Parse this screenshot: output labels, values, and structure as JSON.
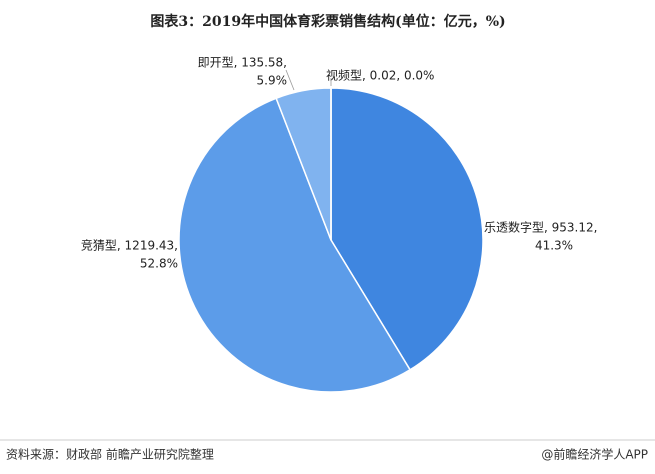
{
  "chart_data": {
    "type": "pie",
    "title": "图表3：2019年中国体育彩票销售结构(单位：亿元，%)",
    "values": [
      953.12,
      1219.43,
      135.58,
      0.02
    ],
    "percents": [
      41.3,
      52.8,
      5.9,
      0.0
    ],
    "value_labels": [
      [
        "乐透数字型, 953.12,",
        "41.3%"
      ],
      [
        "竞猜型, 1219.43,",
        "52.8%"
      ],
      [
        "即开型, 135.58,",
        "5.9%"
      ],
      [
        "视频型, 0.02, 0.0%"
      ]
    ],
    "colors": [
      "#3f86e0",
      "#5c9ce9",
      "#80b3ef",
      "#a6c9f3"
    ],
    "source": "资料来源：财政部 前瞻产业研究院整理",
    "credit": "@前瞻经济学人APP"
  }
}
